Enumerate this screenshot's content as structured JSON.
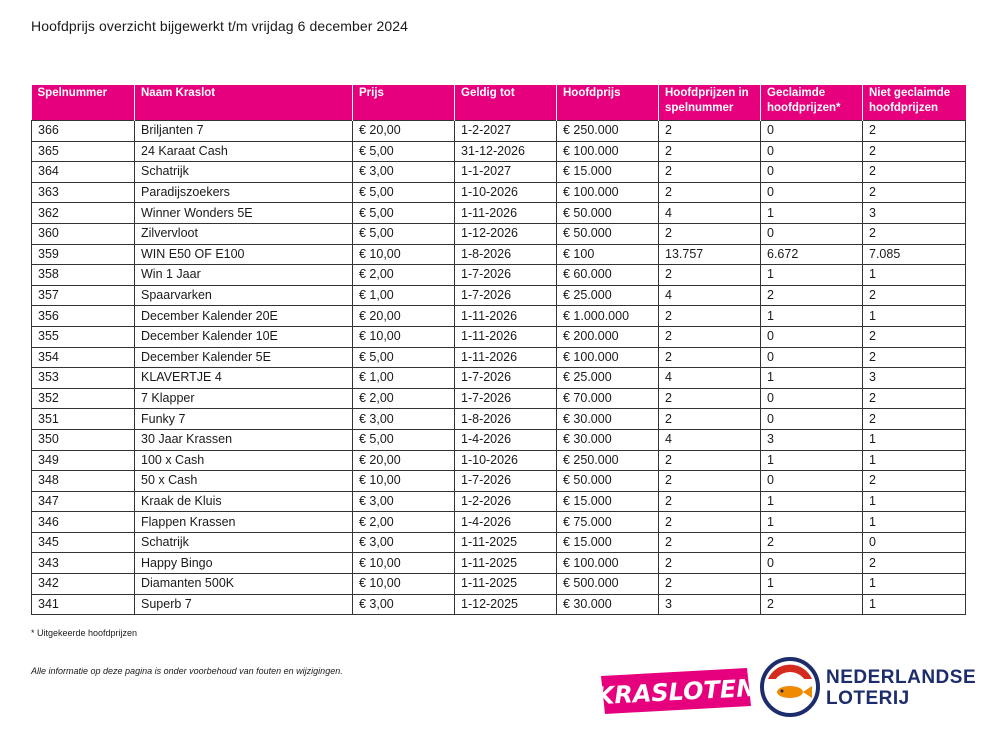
{
  "title": "Hoofdprijs overzicht bijgewerkt t/m vrijdag 6 december 2024",
  "table": {
    "headers": [
      "Spelnummer",
      "Naam Kraslot",
      "Prijs",
      "Geldig tot",
      "Hoofdprijs",
      "Hoofdprijzen in spelnummer",
      "Geclaimde hoofdprijzen*",
      "Niet geclaimde hoofdprijzen"
    ],
    "rows": [
      [
        "366",
        "Briljanten 7",
        "€ 20,00",
        "1-2-2027",
        "€ 250.000",
        "2",
        "0",
        "2"
      ],
      [
        "365",
        "24 Karaat Cash",
        "€ 5,00",
        "31-12-2026",
        "€ 100.000",
        "2",
        "0",
        "2"
      ],
      [
        "364",
        "Schatrijk",
        "€ 3,00",
        "1-1-2027",
        "€ 15.000",
        "2",
        "0",
        "2"
      ],
      [
        "363",
        "Paradijszoekers",
        "€ 5,00",
        "1-10-2026",
        "€ 100.000",
        "2",
        "0",
        "2"
      ],
      [
        "362",
        "Winner Wonders 5E",
        "€ 5,00",
        "1-11-2026",
        "€ 50.000",
        "4",
        "1",
        "3"
      ],
      [
        "360",
        "Zilvervloot",
        "€ 5,00",
        "1-12-2026",
        "€ 50.000",
        "2",
        "0",
        "2"
      ],
      [
        "359",
        "WIN E50 OF E100",
        "€ 10,00",
        "1-8-2026",
        "€ 100",
        "13.757",
        "6.672",
        "7.085"
      ],
      [
        "358",
        "Win 1 Jaar",
        "€ 2,00",
        "1-7-2026",
        "€ 60.000",
        "2",
        "1",
        "1"
      ],
      [
        "357",
        "Spaarvarken",
        "€ 1,00",
        "1-7-2026",
        "€ 25.000",
        "4",
        "2",
        "2"
      ],
      [
        "356",
        "December Kalender 20E",
        "€ 20,00",
        "1-11-2026",
        "€ 1.000.000",
        "2",
        "1",
        "1"
      ],
      [
        "355",
        "December Kalender 10E",
        "€ 10,00",
        "1-11-2026",
        "€ 200.000",
        "2",
        "0",
        "2"
      ],
      [
        "354",
        "December Kalender 5E",
        "€ 5,00",
        "1-11-2026",
        "€ 100.000",
        "2",
        "0",
        "2"
      ],
      [
        "353",
        "KLAVERTJE 4",
        "€ 1,00",
        "1-7-2026",
        "€ 25.000",
        "4",
        "1",
        "3"
      ],
      [
        "352",
        "7 Klapper",
        "€ 2,00",
        "1-7-2026",
        "€ 70.000",
        "2",
        "0",
        "2"
      ],
      [
        "351",
        "Funky 7",
        "€ 3,00",
        "1-8-2026",
        "€ 30.000",
        "2",
        "0",
        "2"
      ],
      [
        "350",
        "30 Jaar Krassen",
        "€ 5,00",
        "1-4-2026",
        "€ 30.000",
        "4",
        "3",
        "1"
      ],
      [
        "349",
        "100 x Cash",
        "€ 20,00",
        "1-10-2026",
        "€ 250.000",
        "2",
        "1",
        "1"
      ],
      [
        "348",
        "50 x Cash",
        "€ 10,00",
        "1-7-2026",
        "€ 50.000",
        "2",
        "0",
        "2"
      ],
      [
        "347",
        "Kraak de Kluis",
        "€ 3,00",
        "1-2-2026",
        "€ 15.000",
        "2",
        "1",
        "1"
      ],
      [
        "346",
        "Flappen Krassen",
        "€ 2,00",
        "1-4-2026",
        "€ 75.000",
        "2",
        "1",
        "1"
      ],
      [
        "345",
        "Schatrijk",
        "€ 3,00",
        "1-11-2025",
        "€ 15.000",
        "2",
        "2",
        "0"
      ],
      [
        "343",
        "Happy Bingo",
        "€ 10,00",
        "1-11-2025",
        "€ 100.000",
        "2",
        "0",
        "2"
      ],
      [
        "342",
        "Diamanten 500K",
        "€ 10,00",
        "1-11-2025",
        "€ 500.000",
        "2",
        "1",
        "1"
      ],
      [
        "341",
        "Superb 7",
        "€ 3,00",
        "1-12-2025",
        "€ 30.000",
        "3",
        "2",
        "1"
      ]
    ]
  },
  "footnote": "* Uitgekeerde hoofdprijzen",
  "disclaimer": "Alle informatie op deze pagina is onder voorbehoud van fouten en wijzigingen.",
  "logos": {
    "kraslo_text": "KRASLOTEN",
    "nl_line1": "NEDERLANDSE",
    "nl_line2": "LOTERIJ"
  },
  "colors": {
    "header_bg": "#e6007e",
    "kraslo_pink": "#e6007e",
    "nl_blue": "#1d2c6b",
    "nl_orange": "#f08a00",
    "nl_red": "#d52b1e"
  },
  "icons": [
    "kraslo-logo",
    "nederlandse-loterij-emblem"
  ]
}
